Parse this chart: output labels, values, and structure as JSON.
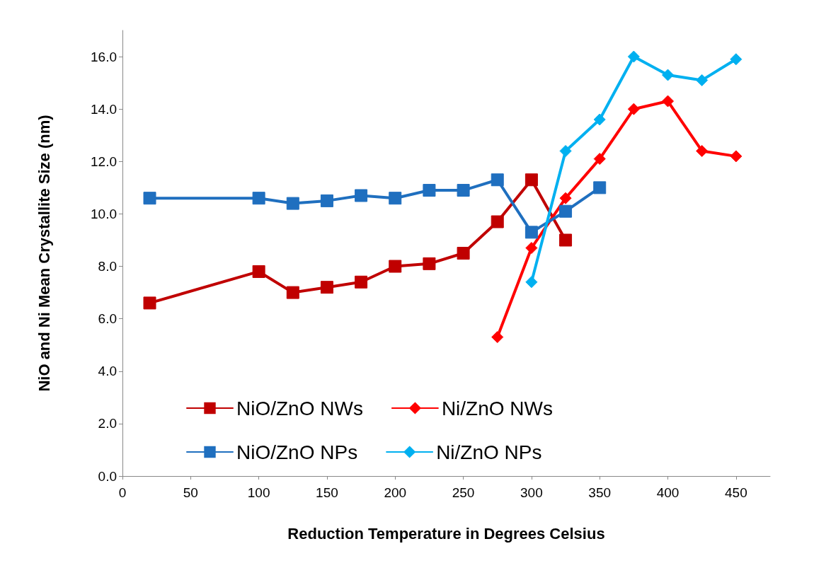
{
  "chart_data": {
    "type": "line",
    "xlabel": "Reduction Temperature in Degrees Celsius",
    "ylabel": "NiO and Ni Mean Crystallite Size (nm)",
    "xlim": [
      0,
      475
    ],
    "xticks": [
      0,
      50,
      100,
      150,
      200,
      250,
      300,
      350,
      400,
      450
    ],
    "ylim": [
      0,
      17
    ],
    "yticks": [
      {
        "value": 0,
        "label": "0.0"
      },
      {
        "value": 2,
        "label": "2.0"
      },
      {
        "value": 4,
        "label": "4.0"
      },
      {
        "value": 6,
        "label": "6.0"
      },
      {
        "value": 8,
        "label": "8.0"
      },
      {
        "value": 10,
        "label": "10.0"
      },
      {
        "value": 12,
        "label": "12.0"
      },
      {
        "value": 14,
        "label": "14.0"
      },
      {
        "value": 16,
        "label": "16.0"
      }
    ],
    "grid": false,
    "legend": "bottom",
    "line_style": "solid",
    "series": [
      {
        "name": "NiO/ZnO NWs",
        "color": "#c00000",
        "marker": "square",
        "x": [
          20,
          100,
          125,
          150,
          175,
          200,
          225,
          250,
          275,
          300,
          325
        ],
        "values": [
          6.6,
          7.8,
          7.0,
          7.2,
          7.4,
          8.0,
          8.1,
          8.5,
          9.7,
          11.3,
          9.0
        ]
      },
      {
        "name": "Ni/ZnO NWs",
        "color": "#ff0000",
        "marker": "diamond",
        "x": [
          275,
          300,
          325,
          350,
          375,
          400,
          425,
          450
        ],
        "values": [
          5.3,
          8.7,
          10.6,
          12.1,
          14.0,
          14.3,
          12.4,
          12.2
        ]
      },
      {
        "name": "NiO/ZnO NPs",
        "color": "#1f6fbf",
        "marker": "square",
        "x": [
          20,
          100,
          125,
          150,
          175,
          200,
          225,
          250,
          275,
          300,
          325,
          350
        ],
        "values": [
          10.6,
          10.6,
          10.4,
          10.5,
          10.7,
          10.6,
          10.9,
          10.9,
          11.3,
          9.3,
          10.1,
          11.0
        ]
      },
      {
        "name": "Ni/ZnO NPs",
        "color": "#00b0f0",
        "marker": "diamond",
        "x": [
          300,
          325,
          350,
          375,
          400,
          425,
          450
        ],
        "values": [
          7.4,
          12.4,
          13.6,
          16.0,
          15.3,
          15.1,
          15.9
        ]
      }
    ]
  }
}
